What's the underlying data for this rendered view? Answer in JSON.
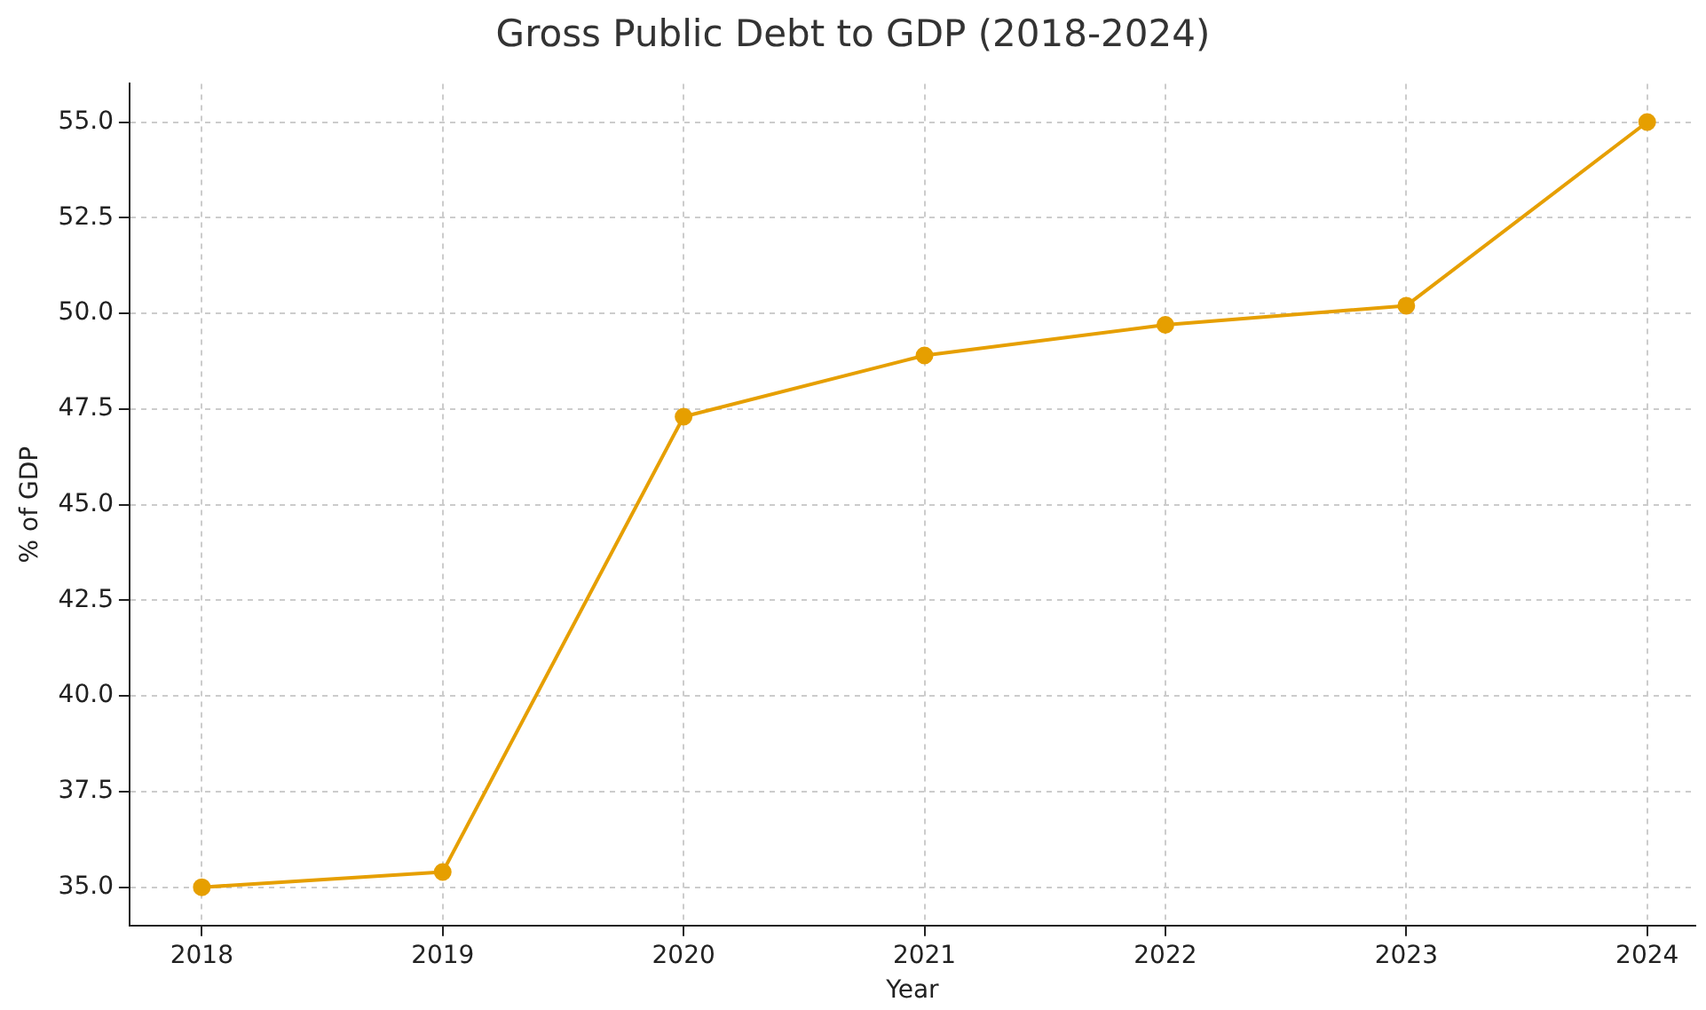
{
  "chart_data": {
    "type": "line",
    "title": "Gross Public Debt to GDP (2018-2024)",
    "xlabel": "Year",
    "ylabel": "% of GDP",
    "x": [
      2018,
      2019,
      2020,
      2021,
      2022,
      2023,
      2024
    ],
    "series": [
      {
        "color": "#e69f00",
        "values": [
          35.0,
          35.4,
          47.3,
          48.9,
          49.7,
          50.2,
          55.0
        ]
      }
    ],
    "xlim": [
      2017.7,
      2024.2
    ],
    "xticks": [
      2018,
      2019,
      2020,
      2021,
      2022,
      2023,
      2024
    ],
    "ylim": [
      34.0,
      56.0
    ],
    "yticks": [
      {
        "value": 35,
        "label": "35.0"
      },
      {
        "value": 37.5,
        "label": "37.5"
      },
      {
        "value": 40,
        "label": "40.0"
      },
      {
        "value": 42.5,
        "label": "42.5"
      },
      {
        "value": 45,
        "label": "45.0"
      },
      {
        "value": 47.5,
        "label": "47.5"
      },
      {
        "value": 50,
        "label": "50.0"
      },
      {
        "value": 52.5,
        "label": "52.5"
      },
      {
        "value": 55,
        "label": "55.0"
      }
    ],
    "grid": true,
    "marker": "circle",
    "line_style": "solid",
    "legend": false
  }
}
